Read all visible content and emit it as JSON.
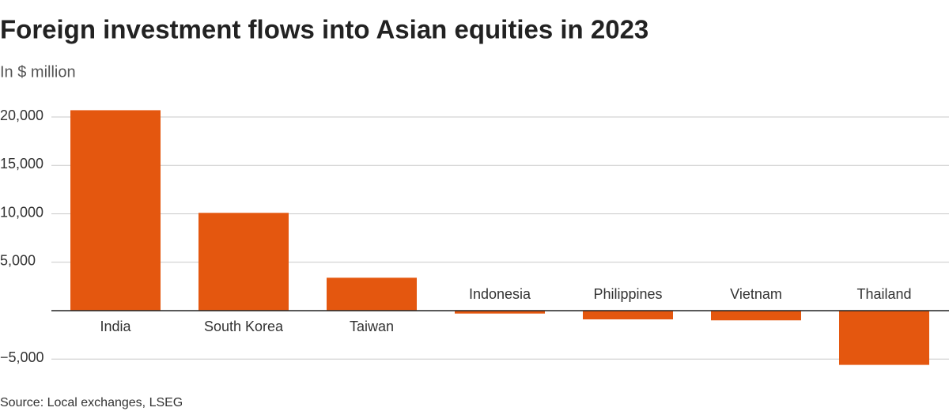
{
  "chart_data": {
    "type": "bar",
    "title": "Foreign investment flows into Asian equities in 2023",
    "subtitle": "In $ million",
    "source": "Source: Local exchanges, LSEG",
    "categories": [
      "India",
      "South Korea",
      "Taiwan",
      "Indonesia",
      "Philippines",
      "Vietnam",
      "Thailand"
    ],
    "values": [
      20700,
      10100,
      3400,
      -300,
      -900,
      -1000,
      -5600
    ],
    "color": "#e4570f",
    "ylim": [
      -6000,
      21000
    ],
    "yticks": [
      {
        "value": -5000,
        "label": "−5,000"
      },
      {
        "value": 5000,
        "label": "5,000"
      },
      {
        "value": 10000,
        "label": "10,000"
      },
      {
        "value": 15000,
        "label": "15,000"
      },
      {
        "value": 20000,
        "label": "20,000"
      }
    ],
    "grid": true
  }
}
